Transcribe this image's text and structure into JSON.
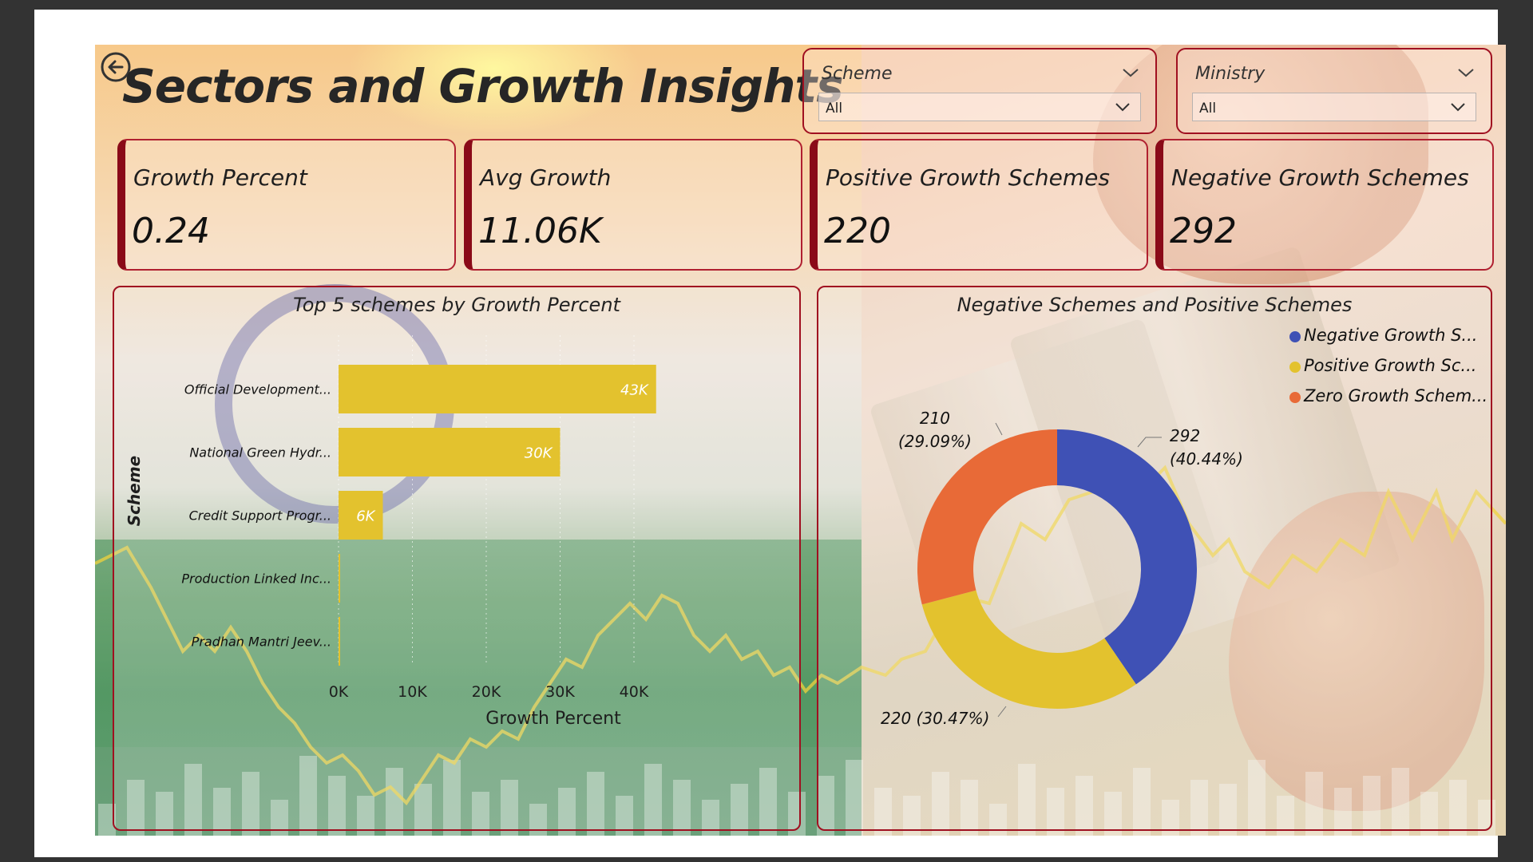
{
  "title": "Sectors and Growth Insights",
  "icons": {
    "back": "back-arrow-icon",
    "dropdown": "chevron-down-icon"
  },
  "slicers": {
    "scheme": {
      "label": "Scheme",
      "value": "All"
    },
    "ministry": {
      "label": "Ministry",
      "value": "All"
    }
  },
  "cards": [
    {
      "label": "Growth Percent",
      "value": "0.24"
    },
    {
      "label": "Avg Growth",
      "value": "11.06K"
    },
    {
      "label": "Positive Growth Schemes",
      "value": "220"
    },
    {
      "label": "Negative Growth Schemes",
      "value": "292"
    }
  ],
  "colors": {
    "accent_border": "#a01020",
    "bar": "#e3c22e",
    "negative": "#3f51b5",
    "positive": "#e3c22e",
    "zero": "#e86a37"
  },
  "chart_data": [
    {
      "type": "bar",
      "orientation": "horizontal",
      "title": "Top 5 schemes by Growth Percent",
      "xlabel": "Growth Percent",
      "ylabel": "Scheme",
      "categories": [
        "Official Development...",
        "National Green Hydr...",
        "Credit Support Progr...",
        "Production Linked Inc...",
        "Pradhan Mantri Jeev..."
      ],
      "values": [
        43000,
        30000,
        6000,
        200,
        150
      ],
      "data_labels": [
        "43K",
        "30K",
        "6K",
        "",
        ""
      ],
      "xticks": [
        "0K",
        "10K",
        "20K",
        "30K",
        "40K"
      ],
      "xlim": [
        0,
        45000
      ],
      "grid": "vertical dotted"
    },
    {
      "type": "pie",
      "variant": "donut",
      "title": "Negative Schemes and Positive Schemes",
      "categories": [
        "Negative  Growth S...",
        "Positive  Growth Sc...",
        "Zero Growth Schem..."
      ],
      "values": [
        292,
        220,
        210
      ],
      "data_labels": [
        {
          "value": "292",
          "percent": "(40.44%)"
        },
        {
          "value": "220",
          "percent": "(30.47%)"
        },
        {
          "value": "210",
          "percent": "(29.09%)"
        }
      ],
      "legend": "top-right"
    }
  ]
}
